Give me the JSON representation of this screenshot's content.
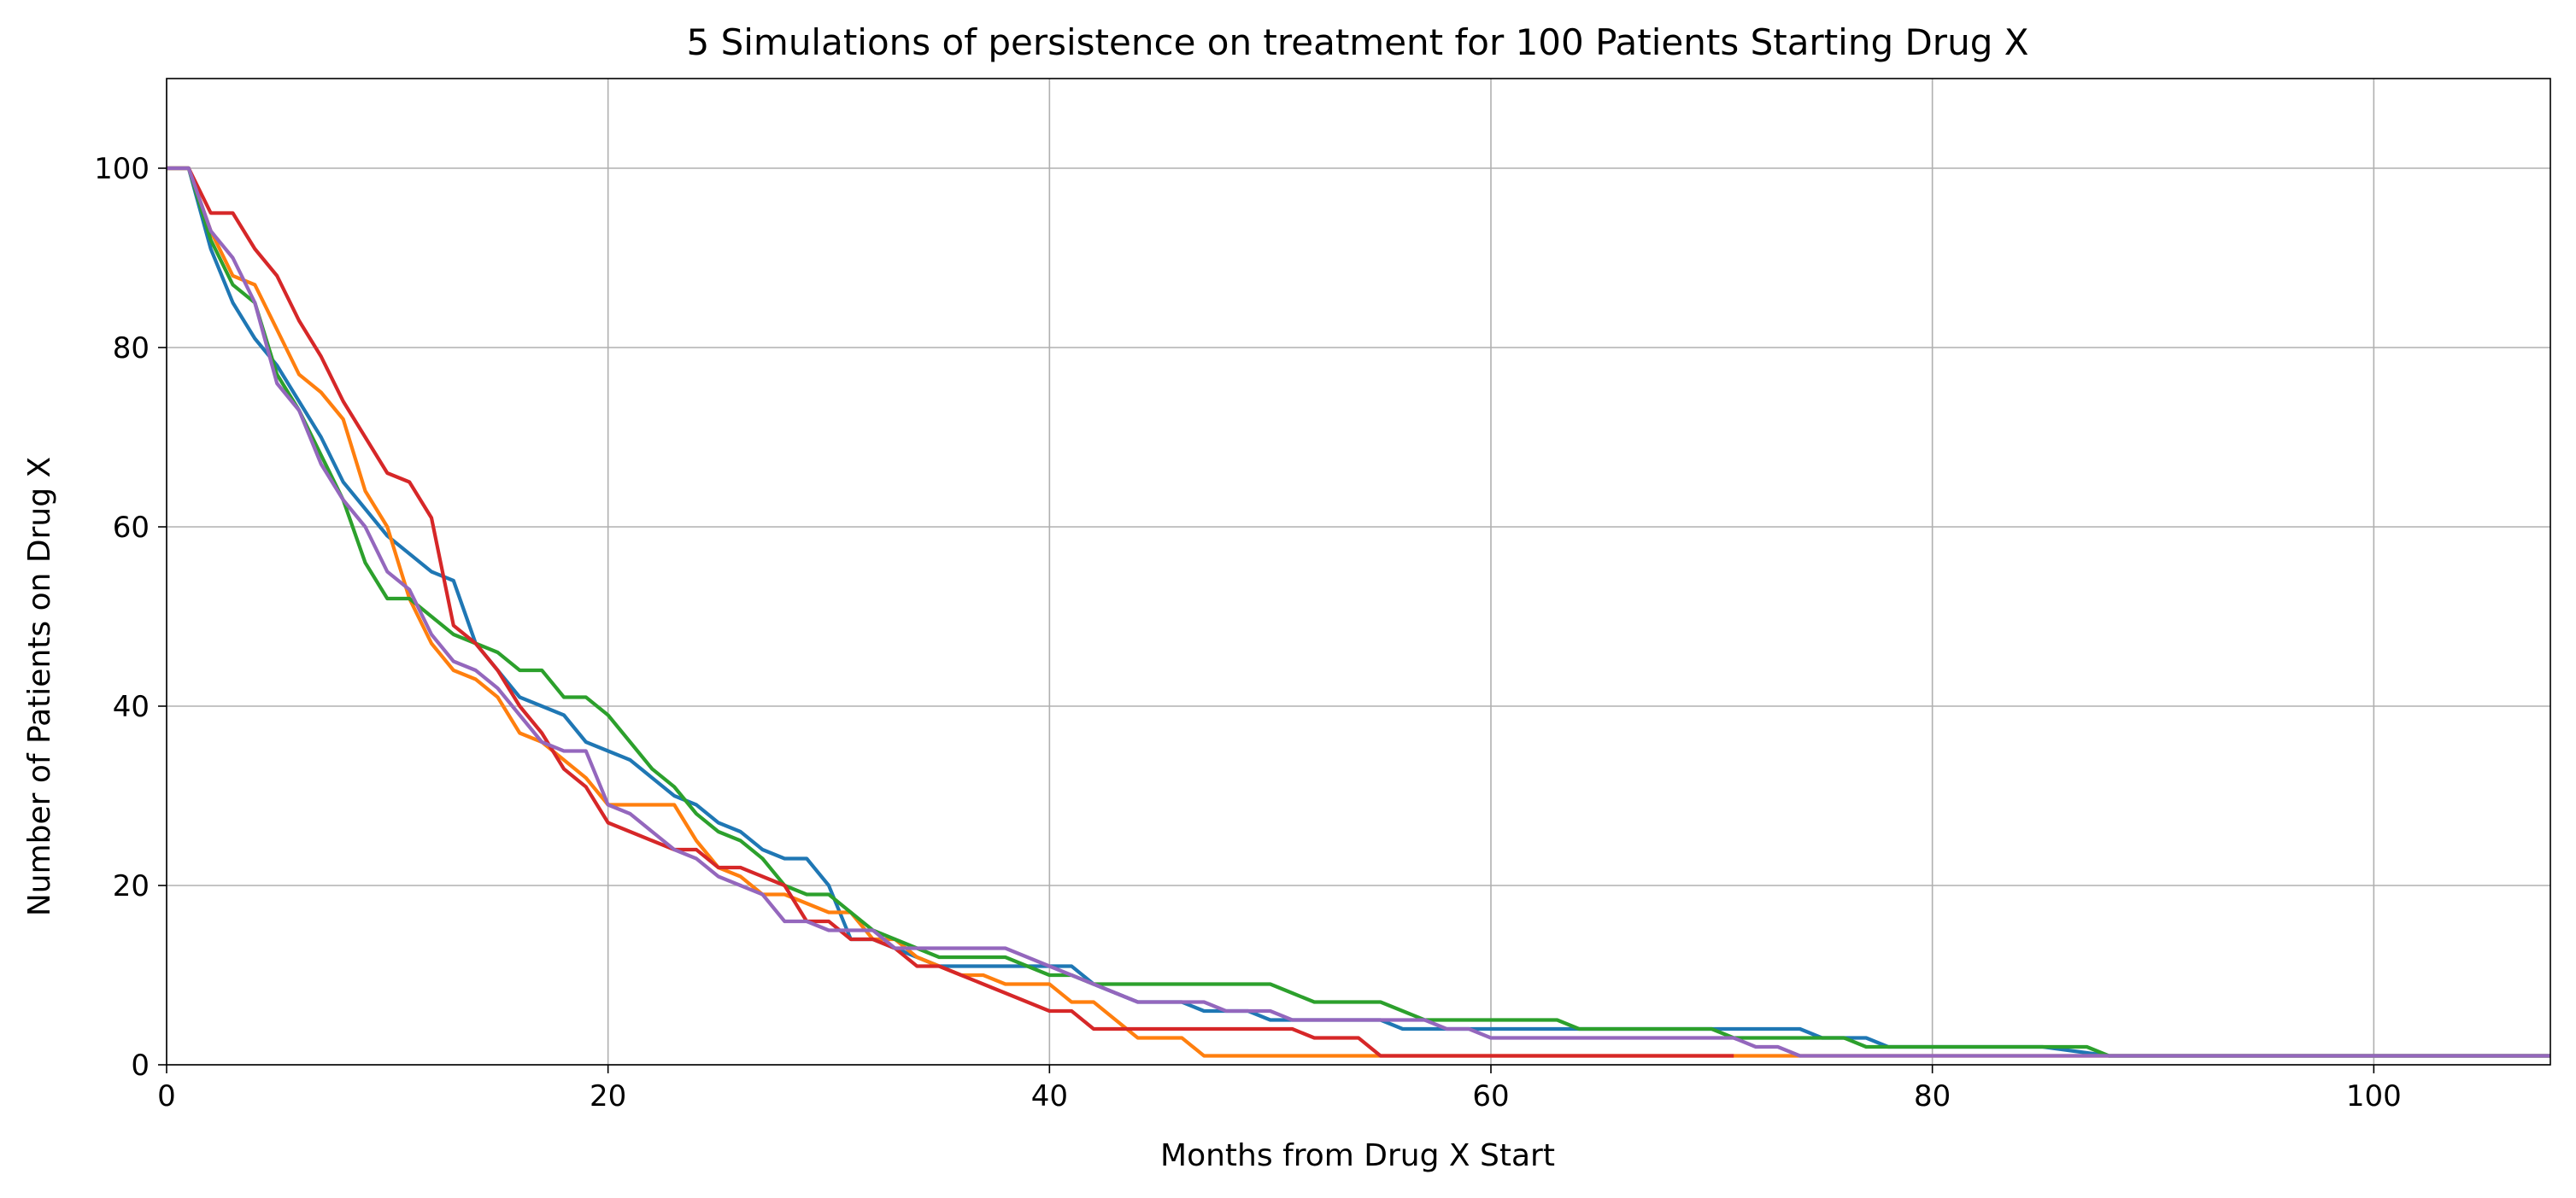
{
  "chart_data": {
    "type": "line",
    "title": "5 Simulations of persistence on treatment for 100 Patients Starting Drug X",
    "xlabel": "Months from Drug X Start",
    "ylabel": "Number of Patients on Drug X",
    "xlim": [
      0,
      108
    ],
    "ylim": [
      0,
      110
    ],
    "xticks": [
      0,
      20,
      40,
      60,
      80,
      100
    ],
    "yticks": [
      0,
      20,
      40,
      60,
      80,
      100
    ],
    "grid": true,
    "legend": "none",
    "series": [
      {
        "color": "#1f77b4",
        "x": [
          0,
          1,
          2,
          3,
          4,
          5,
          6,
          7,
          8,
          9,
          10,
          11,
          12,
          13,
          14,
          15,
          16,
          17,
          18,
          19,
          20,
          21,
          22,
          23,
          24,
          25,
          26,
          27,
          28,
          29,
          30,
          31,
          32,
          33,
          34,
          35,
          36,
          37,
          38,
          39,
          40,
          41,
          42,
          43,
          44,
          45,
          46,
          47,
          48,
          49,
          50,
          51,
          52,
          53,
          54,
          55,
          56,
          57,
          58,
          59,
          60,
          61,
          62,
          63,
          64,
          65,
          66,
          67,
          68,
          69,
          70,
          71,
          72,
          73,
          74,
          75,
          76,
          77,
          78,
          79,
          80,
          85,
          88,
          90,
          100,
          108
        ],
        "y": [
          100,
          100,
          91,
          85,
          81,
          78,
          74,
          70,
          65,
          62,
          59,
          57,
          55,
          54,
          47,
          44,
          41,
          40,
          39,
          36,
          35,
          34,
          32,
          30,
          29,
          27,
          26,
          24,
          23,
          23,
          20,
          14,
          14,
          13,
          12,
          11,
          11,
          11,
          11,
          11,
          11,
          11,
          9,
          8,
          7,
          7,
          7,
          6,
          6,
          6,
          5,
          5,
          5,
          5,
          5,
          5,
          4,
          4,
          4,
          4,
          4,
          4,
          4,
          4,
          4,
          4,
          4,
          4,
          4,
          4,
          4,
          4,
          4,
          4,
          4,
          3,
          3,
          3,
          2,
          2,
          2,
          2,
          1,
          1,
          1,
          1
        ]
      },
      {
        "color": "#ff7f0e",
        "x": [
          0,
          1,
          2,
          3,
          4,
          5,
          6,
          7,
          8,
          9,
          10,
          11,
          12,
          13,
          14,
          15,
          16,
          17,
          18,
          19,
          20,
          21,
          22,
          23,
          24,
          25,
          26,
          27,
          28,
          29,
          30,
          31,
          32,
          33,
          34,
          35,
          36,
          37,
          38,
          39,
          40,
          41,
          42,
          43,
          44,
          45,
          46,
          47,
          48,
          49,
          50,
          55,
          60,
          65,
          70,
          71,
          72,
          73,
          80,
          90,
          100,
          108
        ],
        "y": [
          100,
          100,
          93,
          88,
          87,
          82,
          77,
          75,
          72,
          64,
          60,
          52,
          47,
          44,
          43,
          41,
          37,
          36,
          34,
          32,
          29,
          29,
          29,
          29,
          25,
          22,
          21,
          19,
          19,
          18,
          17,
          17,
          14,
          14,
          12,
          11,
          10,
          10,
          9,
          9,
          9,
          7,
          7,
          5,
          3,
          3,
          3,
          1,
          1,
          1,
          1,
          1,
          1,
          1,
          1,
          1,
          1,
          1,
          1,
          1,
          1,
          1
        ]
      },
      {
        "color": "#2ca02c",
        "x": [
          0,
          1,
          2,
          3,
          4,
          5,
          6,
          7,
          8,
          9,
          10,
          11,
          12,
          13,
          14,
          15,
          16,
          17,
          18,
          19,
          20,
          21,
          22,
          23,
          24,
          25,
          26,
          27,
          28,
          29,
          30,
          31,
          32,
          33,
          34,
          35,
          36,
          37,
          38,
          39,
          40,
          41,
          42,
          43,
          44,
          45,
          46,
          47,
          48,
          49,
          50,
          51,
          52,
          53,
          54,
          55,
          56,
          57,
          58,
          59,
          60,
          61,
          62,
          63,
          64,
          65,
          66,
          67,
          68,
          69,
          70,
          71,
          72,
          73,
          74,
          75,
          76,
          77,
          78,
          80,
          85,
          87,
          88,
          90,
          100,
          108
        ],
        "y": [
          100,
          100,
          92,
          87,
          85,
          77,
          73,
          68,
          63,
          56,
          52,
          52,
          50,
          48,
          47,
          46,
          44,
          44,
          41,
          41,
          39,
          36,
          33,
          31,
          28,
          26,
          25,
          23,
          20,
          19,
          19,
          17,
          15,
          14,
          13,
          12,
          12,
          12,
          12,
          11,
          10,
          10,
          9,
          9,
          9,
          9,
          9,
          9,
          9,
          9,
          9,
          8,
          7,
          7,
          7,
          7,
          6,
          5,
          5,
          5,
          5,
          5,
          5,
          5,
          4,
          4,
          4,
          4,
          4,
          4,
          4,
          3,
          3,
          3,
          3,
          3,
          3,
          2,
          2,
          2,
          2,
          2,
          1,
          1,
          1,
          1
        ]
      },
      {
        "color": "#d62728",
        "x": [
          0,
          1,
          2,
          3,
          4,
          5,
          6,
          7,
          8,
          9,
          10,
          11,
          12,
          13,
          14,
          15,
          16,
          17,
          18,
          19,
          20,
          21,
          22,
          23,
          24,
          25,
          26,
          27,
          28,
          29,
          30,
          31,
          32,
          33,
          34,
          35,
          36,
          37,
          38,
          39,
          40,
          41,
          42,
          43,
          44,
          45,
          46,
          47,
          48,
          49,
          50,
          51,
          52,
          53,
          54,
          55,
          56,
          60,
          65,
          70,
          71
        ],
        "y": [
          100,
          100,
          95,
          95,
          91,
          88,
          83,
          79,
          74,
          70,
          66,
          65,
          61,
          49,
          47,
          44,
          40,
          37,
          33,
          31,
          27,
          26,
          25,
          24,
          24,
          22,
          22,
          21,
          20,
          16,
          16,
          14,
          14,
          13,
          11,
          11,
          10,
          9,
          8,
          7,
          6,
          6,
          4,
          4,
          4,
          4,
          4,
          4,
          4,
          4,
          4,
          4,
          3,
          3,
          3,
          1,
          1,
          1,
          1,
          1,
          1
        ]
      },
      {
        "color": "#9467bd",
        "x": [
          0,
          1,
          2,
          3,
          4,
          5,
          6,
          7,
          8,
          9,
          10,
          11,
          12,
          13,
          14,
          15,
          16,
          17,
          18,
          19,
          20,
          21,
          22,
          23,
          24,
          25,
          26,
          27,
          28,
          29,
          30,
          31,
          32,
          33,
          34,
          35,
          36,
          37,
          38,
          39,
          40,
          41,
          42,
          43,
          44,
          45,
          46,
          47,
          48,
          49,
          50,
          51,
          52,
          53,
          54,
          55,
          56,
          57,
          58,
          59,
          60,
          61,
          62,
          63,
          64,
          65,
          66,
          67,
          68,
          69,
          70,
          71,
          72,
          73,
          74,
          80,
          90,
          100,
          108
        ],
        "y": [
          100,
          100,
          93,
          90,
          85,
          76,
          73,
          67,
          63,
          60,
          55,
          53,
          48,
          45,
          44,
          42,
          39,
          36,
          35,
          35,
          29,
          28,
          26,
          24,
          23,
          21,
          20,
          19,
          16,
          16,
          15,
          15,
          15,
          13,
          13,
          13,
          13,
          13,
          13,
          12,
          11,
          10,
          9,
          8,
          7,
          7,
          7,
          7,
          6,
          6,
          6,
          5,
          5,
          5,
          5,
          5,
          5,
          5,
          4,
          4,
          3,
          3,
          3,
          3,
          3,
          3,
          3,
          3,
          3,
          3,
          3,
          3,
          2,
          2,
          1,
          1,
          1,
          1,
          1
        ]
      }
    ]
  }
}
